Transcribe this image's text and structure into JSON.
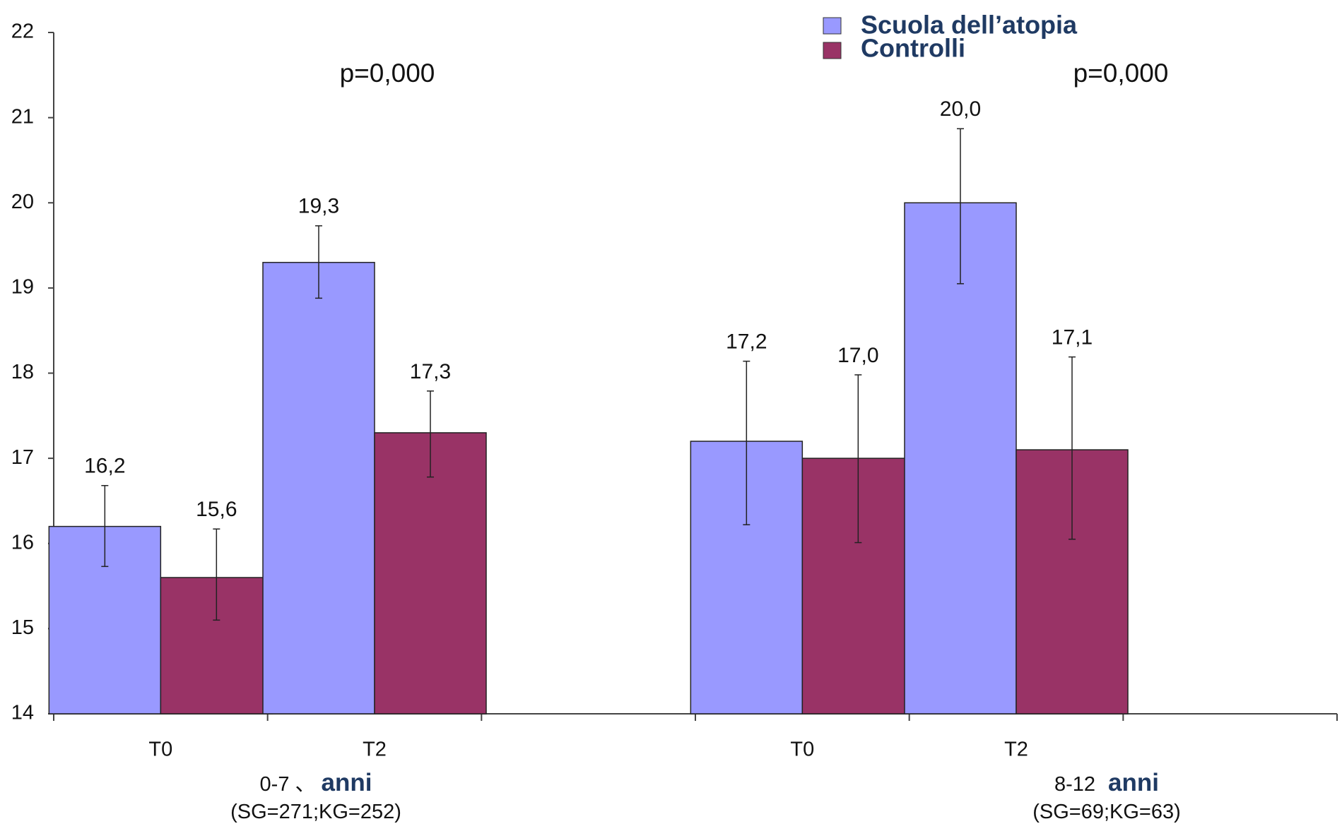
{
  "chart_data": {
    "type": "bar",
    "ylim": [
      14,
      22
    ],
    "yticks": [
      14,
      15,
      16,
      17,
      18,
      19,
      20,
      21,
      22
    ],
    "grid": false,
    "legend_position": "top-right",
    "colors": {
      "series_0": "#9999ff",
      "series_1": "#993366",
      "legend_text": "#1f3a63"
    },
    "series_names": [
      "Scuola dell’atopia",
      "Controlli"
    ],
    "groups": [
      {
        "range": "0-7",
        "sep": "、",
        "unit": "anni",
        "n": "(SG=271;KG=252)",
        "pvalue": "p=0,000",
        "categories": [
          {
            "label": "T0",
            "values": [
              16.2,
              15.6
            ],
            "labels": [
              "16,2",
              "15,6"
            ],
            "errors": [
              [
                15.73,
                16.68
              ],
              [
                15.1,
                16.17
              ]
            ]
          },
          {
            "label": "T2",
            "values": [
              19.3,
              17.3
            ],
            "labels": [
              "19,3",
              "17,3"
            ],
            "errors": [
              [
                18.88,
                19.73
              ],
              [
                16.78,
                17.79
              ]
            ]
          }
        ]
      },
      {
        "range": "8-12",
        "sep": "",
        "unit": "anni",
        "n": "(SG=69;KG=63)",
        "pvalue": "p=0,000",
        "categories": [
          {
            "label": "T0",
            "values": [
              17.2,
              17.0
            ],
            "labels": [
              "17,2",
              "17,0"
            ],
            "errors": [
              [
                16.22,
                18.14
              ],
              [
                16.01,
                17.98
              ]
            ]
          },
          {
            "label": "T2",
            "values": [
              20.0,
              17.1
            ],
            "labels": [
              "20,0",
              "17,1"
            ],
            "errors": [
              [
                19.05,
                20.87
              ],
              [
                16.05,
                18.19
              ]
            ]
          }
        ]
      }
    ]
  }
}
